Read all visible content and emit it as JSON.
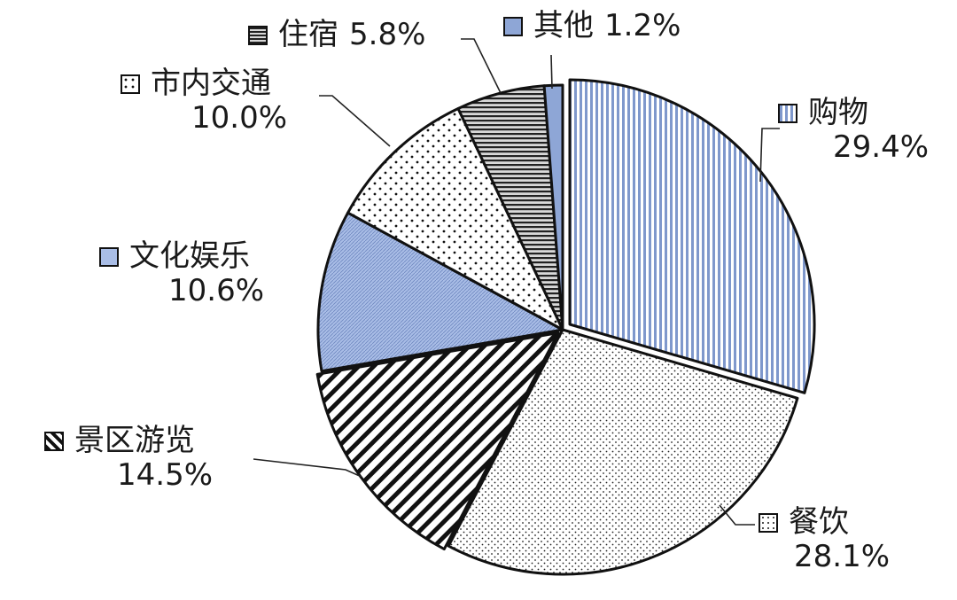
{
  "chart_data": {
    "type": "pie",
    "categories": [
      "购物",
      "餐饮",
      "景区游览",
      "文化娱乐",
      "市内交通",
      "住宿",
      "其他"
    ],
    "values": [
      29.4,
      28.1,
      14.5,
      10.6,
      10.0,
      5.8,
      1.2
    ],
    "value_labels": [
      "29.4%",
      "28.1%",
      "14.5%",
      "10.6%",
      "10.0%",
      "5.8%",
      "1.2%"
    ],
    "title": "",
    "start_angle_deg": 0,
    "direction": "clockwise",
    "patterns": [
      "vertical-lines-blue",
      "dots-fine",
      "diagonal-stripes",
      "fine-hatch-blue",
      "dots-coarse",
      "horizontal-lines",
      "solid-blue"
    ],
    "colors": {
      "blue": "#8ea6d6",
      "line": "#111111",
      "background": "#ffffff"
    }
  }
}
